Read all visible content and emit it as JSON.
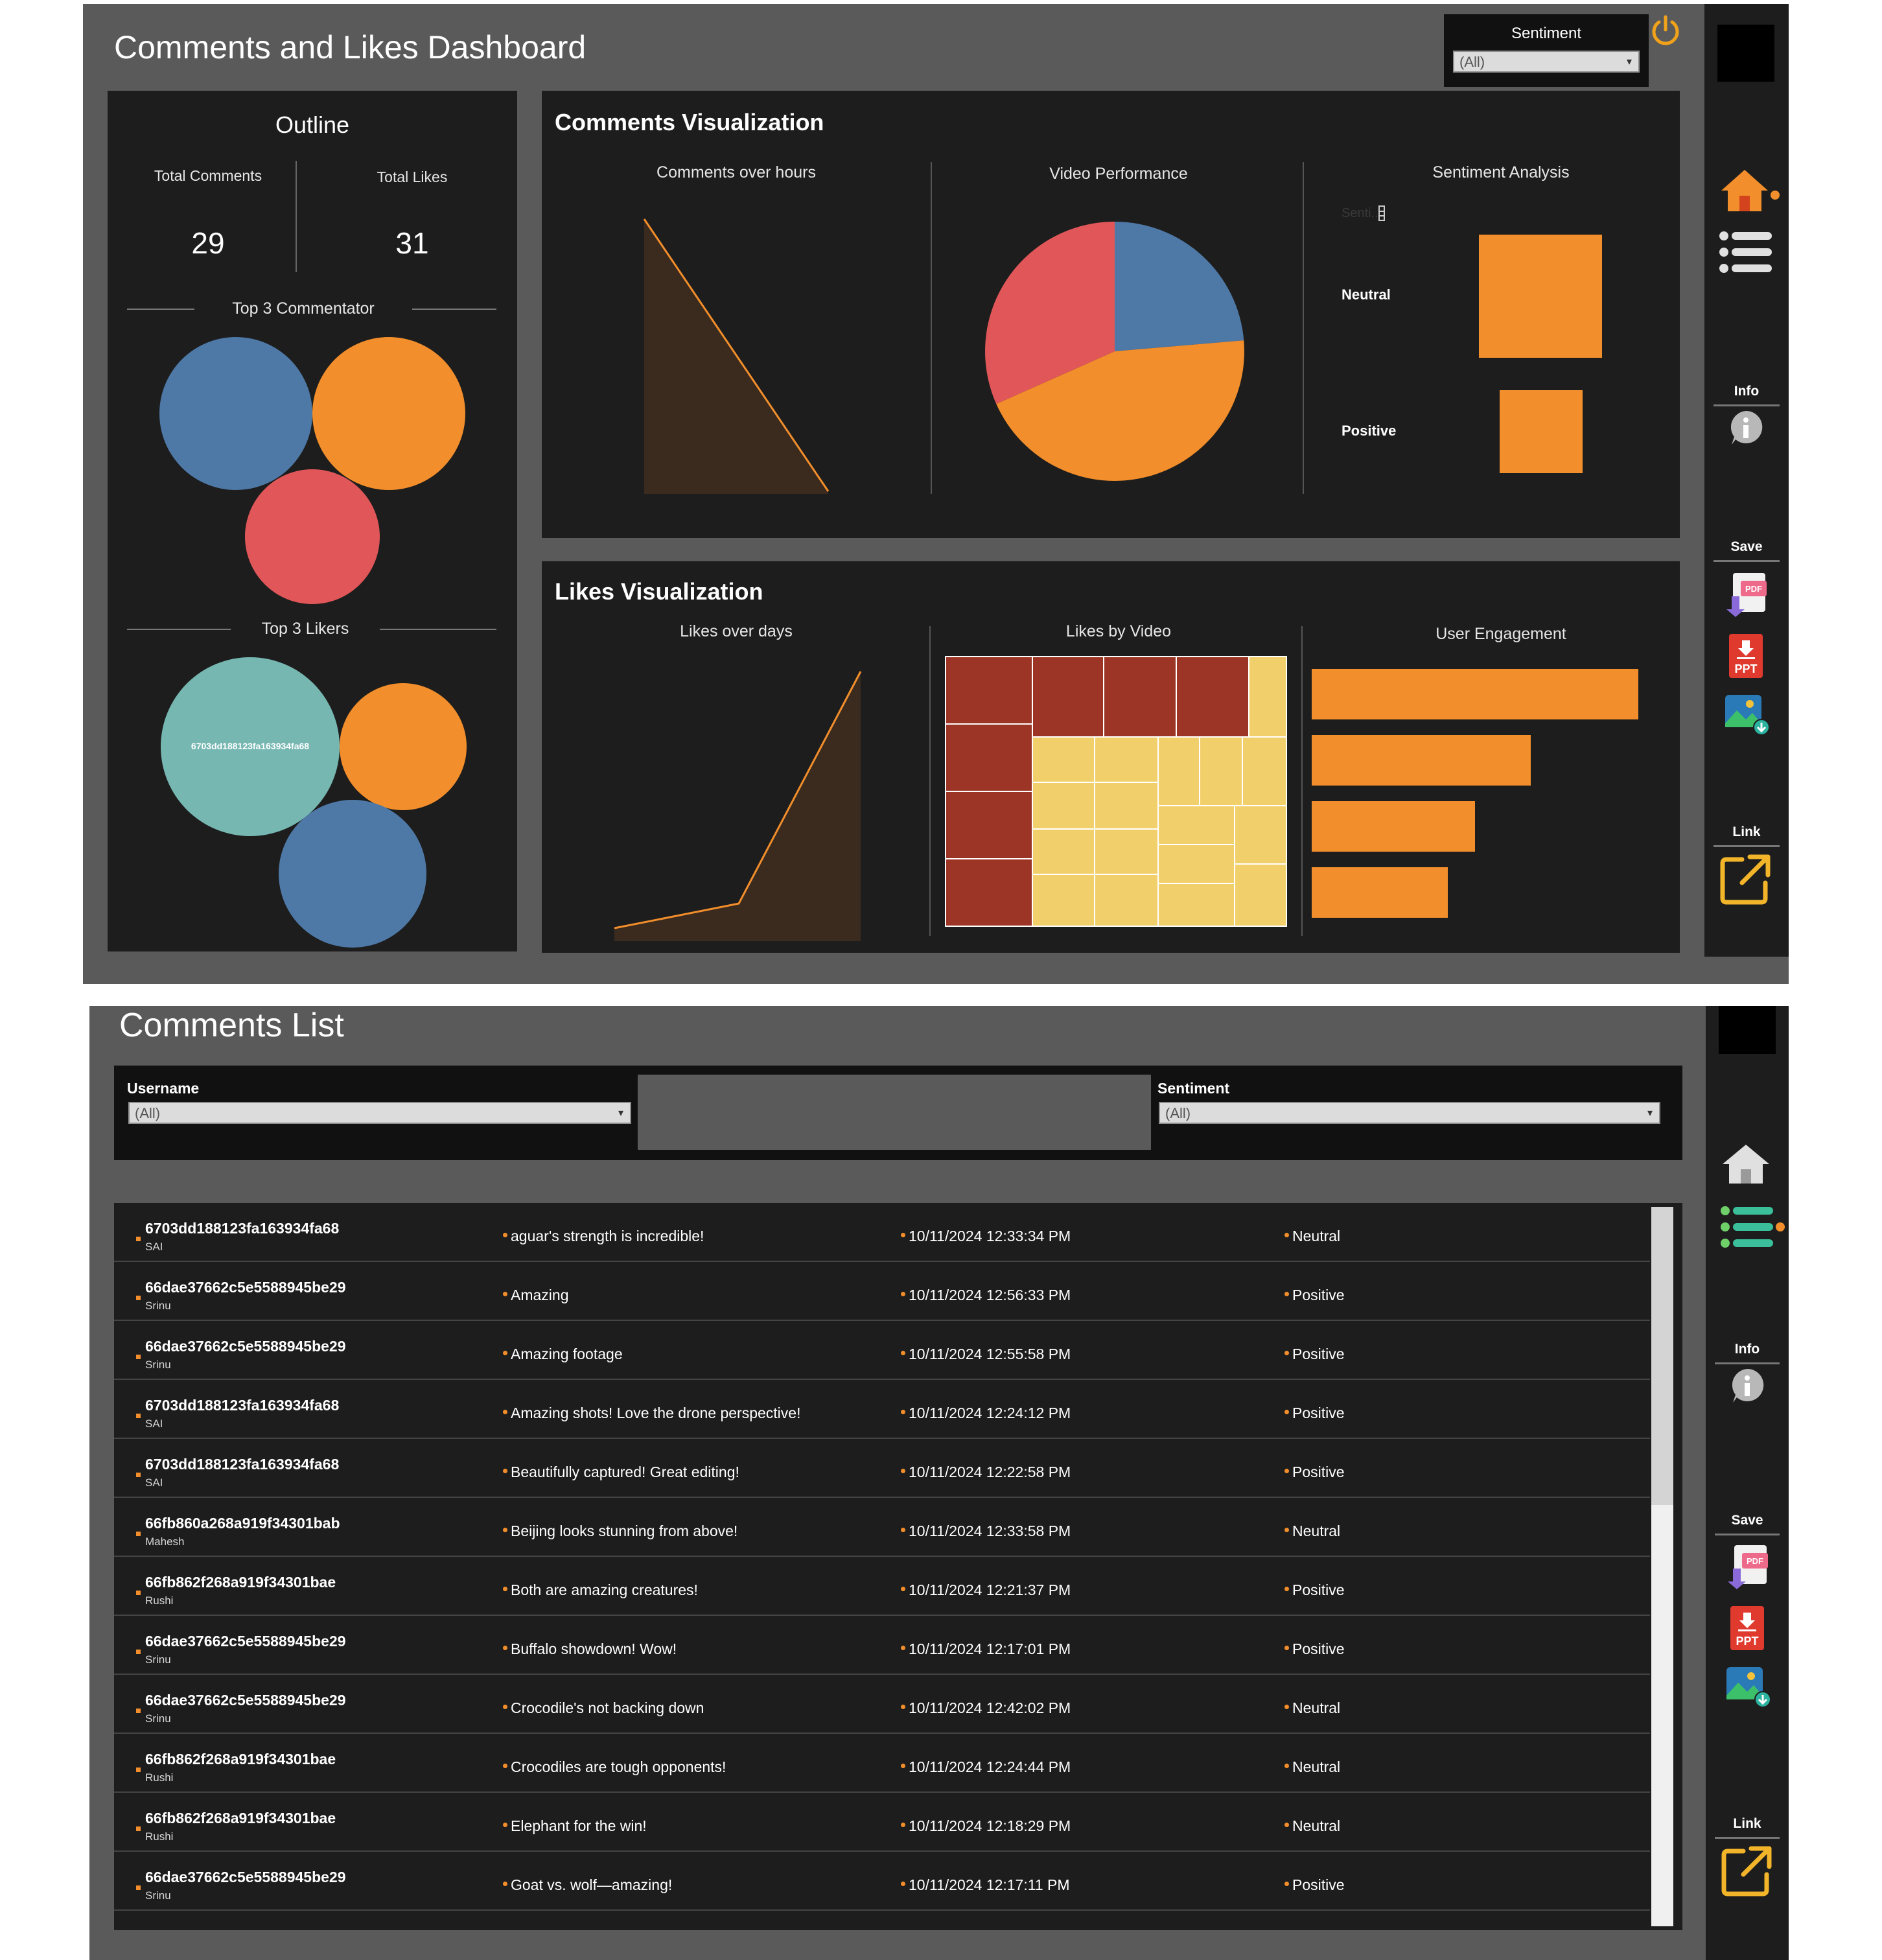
{
  "dashboard": {
    "title": "Comments and Likes Dashboard",
    "sentiment_filter": {
      "label": "Sentiment",
      "value": "(All)"
    }
  },
  "outline": {
    "title": "Outline",
    "total_comments_label": "Total Comments",
    "total_comments": "29",
    "total_likes_label": "Total Likes",
    "total_likes": "31",
    "top_commentator_label": "Top 3 Commentator",
    "top_likers_label": "Top 3 Likers",
    "top_liker_bubble_label": "6703dd188123fa163934fa68"
  },
  "comments_viz": {
    "title": "Comments Visualization",
    "hours_title": "Comments over hours",
    "video_title": "Video Performance",
    "sentiment_title": "Sentiment Analysis",
    "sentiment_ghost": "Senti..",
    "sentiment_items": [
      "Neutral",
      "Positive"
    ]
  },
  "likes_viz": {
    "title": "Likes Visualization",
    "days_title": "Likes over days",
    "video_title": "Likes by Video",
    "engagement_title": "User Engagement"
  },
  "toolbar": {
    "info_label": "Info",
    "save_label": "Save",
    "link_label": "Link"
  },
  "comments_list": {
    "title": "Comments List",
    "username_filter": {
      "label": "Username",
      "value": "(All)"
    },
    "sentiment_filter": {
      "label": "Sentiment",
      "value": "(All)"
    },
    "rows": [
      {
        "user_id": "6703dd188123fa163934fa68",
        "username": "SAI",
        "comment": "aguar's strength is incredible!",
        "timestamp": "10/11/2024 12:33:34 PM",
        "sentiment": "Neutral"
      },
      {
        "user_id": "66dae37662c5e5588945be29",
        "username": "Srinu",
        "comment": "Amazing",
        "timestamp": "10/11/2024 12:56:33 PM",
        "sentiment": "Positive"
      },
      {
        "user_id": "66dae37662c5e5588945be29",
        "username": "Srinu",
        "comment": "Amazing footage",
        "timestamp": "10/11/2024 12:55:58 PM",
        "sentiment": "Positive"
      },
      {
        "user_id": "6703dd188123fa163934fa68",
        "username": "SAI",
        "comment": "Amazing shots! Love the drone perspective!",
        "timestamp": "10/11/2024 12:24:12 PM",
        "sentiment": "Positive"
      },
      {
        "user_id": "6703dd188123fa163934fa68",
        "username": "SAI",
        "comment": "Beautifully captured! Great editing!",
        "timestamp": "10/11/2024 12:22:58 PM",
        "sentiment": "Positive"
      },
      {
        "user_id": "66fb860a268a919f34301bab",
        "username": "Mahesh",
        "comment": "Beijing looks stunning from above!",
        "timestamp": "10/11/2024 12:33:58 PM",
        "sentiment": "Neutral"
      },
      {
        "user_id": "66fb862f268a919f34301bae",
        "username": "Rushi",
        "comment": "Both are amazing creatures!",
        "timestamp": "10/11/2024 12:21:37 PM",
        "sentiment": "Positive"
      },
      {
        "user_id": "66dae37662c5e5588945be29",
        "username": "Srinu",
        "comment": "Buffalo showdown! Wow!",
        "timestamp": "10/11/2024 12:17:01 PM",
        "sentiment": "Positive"
      },
      {
        "user_id": "66dae37662c5e5588945be29",
        "username": "Srinu",
        "comment": "Crocodile's not backing down",
        "timestamp": "10/11/2024 12:42:02 PM",
        "sentiment": "Neutral"
      },
      {
        "user_id": "66fb862f268a919f34301bae",
        "username": "Rushi",
        "comment": "Crocodiles are tough opponents!",
        "timestamp": "10/11/2024 12:24:44 PM",
        "sentiment": "Neutral"
      },
      {
        "user_id": "66fb862f268a919f34301bae",
        "username": "Rushi",
        "comment": "Elephant for the win!",
        "timestamp": "10/11/2024 12:18:29 PM",
        "sentiment": "Neutral"
      },
      {
        "user_id": "66dae37662c5e5588945be29",
        "username": "Srinu",
        "comment": "Goat vs. wolf—amazing!",
        "timestamp": "10/11/2024 12:17:11 PM",
        "sentiment": "Positive"
      }
    ]
  },
  "colors": {
    "orange": "#f28e2b",
    "blue": "#4e79a7",
    "red": "#e15759",
    "teal": "#76b7b2",
    "dark_red": "#9c3525",
    "yellow": "#f1cf6a",
    "panel": "#1d1d1d",
    "background": "#5a5a5a"
  }
}
